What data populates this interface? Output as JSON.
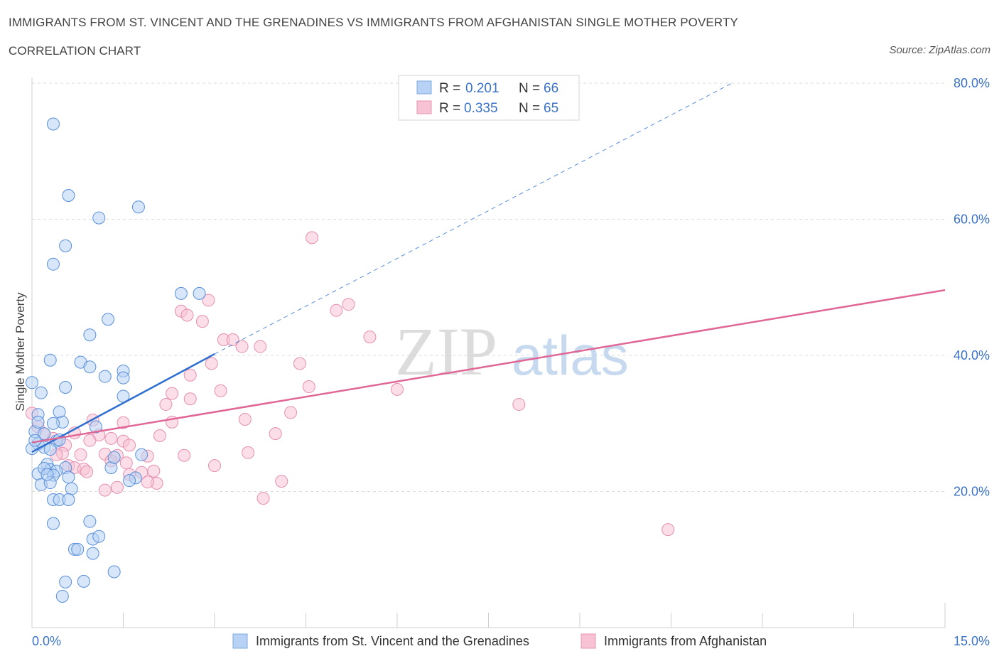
{
  "title_line1": "IMMIGRANTS FROM ST. VINCENT AND THE GRENADINES VS IMMIGRANTS FROM AFGHANISTAN SINGLE MOTHER POVERTY",
  "title_line2": "CORRELATION CHART",
  "source": "Source: ZipAtlas.com",
  "watermark": {
    "zip": "ZIP",
    "atlas": "atlas"
  },
  "colors": {
    "blue": "#2e6fd0",
    "blue_fill": "#b7d2f4",
    "pink": "#e06795",
    "pink_fill": "#f7c3d4",
    "accent_text": "#3a72c8",
    "grid": "#d9d9d9"
  },
  "legend_top": [
    {
      "r_label": "R = ",
      "r_value": "0.201",
      "n_label": "N = ",
      "n_value": "66"
    },
    {
      "r_label": "R = ",
      "r_value": "0.335",
      "n_label": "N = ",
      "n_value": "65"
    }
  ],
  "chart_data": {
    "type": "scatter",
    "ylabel": "Single Mother Poverty",
    "x_tick_labels": [
      "0.0%",
      "15.0%"
    ],
    "y_tick_labels": [
      "20.0%",
      "40.0%",
      "60.0%",
      "80.0%"
    ],
    "xlim": [
      0,
      15
    ],
    "ylim": [
      0,
      80
    ],
    "grid": true,
    "legend_position": "bottom",
    "series": [
      {
        "name": "Immigrants from St. Vincent and the Grenadines",
        "color": "#2e6fd0",
        "trend": {
          "x": [
            0,
            3
          ],
          "y": [
            25.8,
            40.2
          ],
          "extended_to": [
            11.5,
            80
          ]
        },
        "points": [
          [
            0.35,
            74
          ],
          [
            0.6,
            63.5
          ],
          [
            1.1,
            60.2
          ],
          [
            1.75,
            61.8
          ],
          [
            0.55,
            56.1
          ],
          [
            0.35,
            53.4
          ],
          [
            1.25,
            45.3
          ],
          [
            2.45,
            49.1
          ],
          [
            2.75,
            49.1
          ],
          [
            0.95,
            43
          ],
          [
            0.3,
            39.3
          ],
          [
            0.8,
            39
          ],
          [
            0.95,
            38.3
          ],
          [
            1.2,
            36.9
          ],
          [
            1.5,
            37.7
          ],
          [
            1.5,
            36.7
          ],
          [
            0.0,
            36
          ],
          [
            0.55,
            35.3
          ],
          [
            0.15,
            34.5
          ],
          [
            1.5,
            34
          ],
          [
            0.1,
            31.3
          ],
          [
            0.45,
            31.7
          ],
          [
            0.5,
            30.2
          ],
          [
            0.35,
            30
          ],
          [
            1.05,
            29.5
          ],
          [
            0.05,
            28.8
          ],
          [
            0.2,
            28.5
          ],
          [
            0.4,
            27.4
          ],
          [
            0.1,
            27
          ],
          [
            0.2,
            26.5
          ],
          [
            0.3,
            26.2
          ],
          [
            0.0,
            26.3
          ],
          [
            0.25,
            24
          ],
          [
            0.55,
            23.5
          ],
          [
            0.3,
            23.2
          ],
          [
            0.4,
            23
          ],
          [
            0.1,
            22.6
          ],
          [
            0.35,
            22.4
          ],
          [
            0.6,
            22.1
          ],
          [
            1.3,
            23.5
          ],
          [
            1.35,
            25
          ],
          [
            1.7,
            22
          ],
          [
            1.6,
            21.6
          ],
          [
            0.15,
            21
          ],
          [
            0.3,
            21.3
          ],
          [
            0.65,
            20.4
          ],
          [
            0.35,
            18.8
          ],
          [
            0.45,
            18.8
          ],
          [
            0.6,
            18.8
          ],
          [
            0.35,
            15.3
          ],
          [
            0.95,
            15.6
          ],
          [
            1.0,
            13
          ],
          [
            1.1,
            13.4
          ],
          [
            0.7,
            11.5
          ],
          [
            0.75,
            11.5
          ],
          [
            1.0,
            10.9
          ],
          [
            1.35,
            8.2
          ],
          [
            0.55,
            6.7
          ],
          [
            0.85,
            6.8
          ],
          [
            0.5,
            4.6
          ],
          [
            1.8,
            25.4
          ],
          [
            0.45,
            27.6
          ],
          [
            0.05,
            27.5
          ],
          [
            0.1,
            30.2
          ],
          [
            0.2,
            23.4
          ],
          [
            0.25,
            22.5
          ]
        ]
      },
      {
        "name": "Immigrants from Afghanistan",
        "color": "#e06795",
        "trend": {
          "x": [
            0,
            15
          ],
          "y": [
            27.2,
            49.6
          ]
        },
        "points": [
          [
            4.6,
            57.3
          ],
          [
            2.45,
            46.5
          ],
          [
            2.55,
            45.9
          ],
          [
            2.9,
            48.1
          ],
          [
            2.8,
            45
          ],
          [
            5.0,
            46.6
          ],
          [
            5.2,
            47.5
          ],
          [
            3.15,
            42.3
          ],
          [
            3.3,
            42.3
          ],
          [
            3.45,
            41.3
          ],
          [
            3.75,
            41.3
          ],
          [
            5.55,
            42.7
          ],
          [
            2.95,
            38.8
          ],
          [
            4.4,
            38.8
          ],
          [
            2.6,
            37.1
          ],
          [
            4.55,
            35.4
          ],
          [
            3.1,
            34.8
          ],
          [
            2.3,
            34.4
          ],
          [
            2.6,
            33.6
          ],
          [
            6.0,
            35
          ],
          [
            8.0,
            32.8
          ],
          [
            2.2,
            32.8
          ],
          [
            4.25,
            31.6
          ],
          [
            1.5,
            30.1
          ],
          [
            2.3,
            30.2
          ],
          [
            3.5,
            30.6
          ],
          [
            0.0,
            31.5
          ],
          [
            1.0,
            30.5
          ],
          [
            0.1,
            29.5
          ],
          [
            0.2,
            28.4
          ],
          [
            0.35,
            27.8
          ],
          [
            0.55,
            26.8
          ],
          [
            0.7,
            28.6
          ],
          [
            1.1,
            28.3
          ],
          [
            0.95,
            27.5
          ],
          [
            1.3,
            27.8
          ],
          [
            1.5,
            27.4
          ],
          [
            2.1,
            28.2
          ],
          [
            4.0,
            28.5
          ],
          [
            1.6,
            26.8
          ],
          [
            0.5,
            25.6
          ],
          [
            0.8,
            25.4
          ],
          [
            1.2,
            25.5
          ],
          [
            1.4,
            25.3
          ],
          [
            1.9,
            25.2
          ],
          [
            2.5,
            25.3
          ],
          [
            1.3,
            24.5
          ],
          [
            1.55,
            24.2
          ],
          [
            3.55,
            25.7
          ],
          [
            0.6,
            23.8
          ],
          [
            0.7,
            23.5
          ],
          [
            0.85,
            23.3
          ],
          [
            0.9,
            22.9
          ],
          [
            1.6,
            22.5
          ],
          [
            1.8,
            22.8
          ],
          [
            2.0,
            23
          ],
          [
            2.05,
            21.2
          ],
          [
            3.0,
            23.8
          ],
          [
            4.1,
            21.5
          ],
          [
            1.2,
            20.2
          ],
          [
            1.4,
            20.6
          ],
          [
            1.9,
            21.4
          ],
          [
            3.8,
            19
          ],
          [
            10.45,
            14.4
          ],
          [
            0.4,
            25.4
          ]
        ]
      }
    ]
  }
}
